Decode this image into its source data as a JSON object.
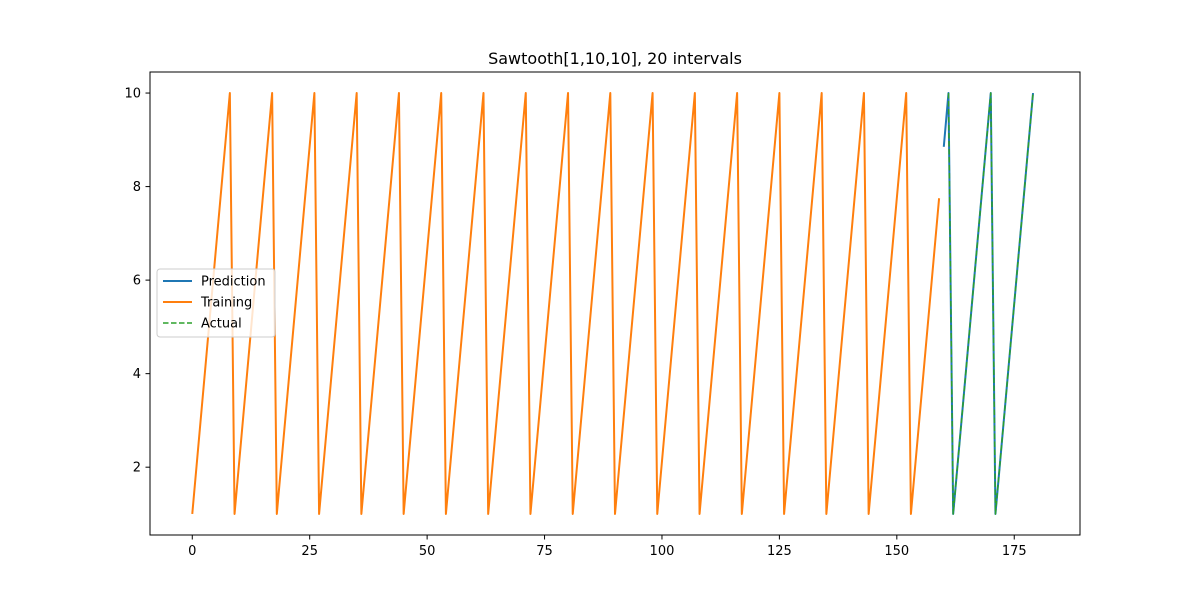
{
  "chart_data": {
    "type": "line",
    "title": "Sawtooth[1,10,10], 20 intervals",
    "xlabel": "",
    "ylabel": "",
    "xlim": [
      -9,
      189
    ],
    "ylim": [
      0.55,
      10.45
    ],
    "xticks": [
      0,
      25,
      50,
      75,
      100,
      125,
      150,
      175
    ],
    "yticks": [
      2,
      4,
      6,
      8,
      10
    ],
    "grid": false,
    "legend": "center-left",
    "series": [
      {
        "name": "Prediction",
        "color": "#1f77b4",
        "style": "solid",
        "x": [
          160,
          161,
          162,
          170,
          171,
          179
        ],
        "y": [
          8.85,
          10,
          1,
          10,
          1,
          10
        ]
      },
      {
        "name": "Training",
        "color": "#ff7f0e",
        "style": "solid",
        "x": [
          0,
          8,
          9,
          17,
          18,
          26,
          27,
          35,
          36,
          44,
          45,
          53,
          54,
          62,
          63,
          71,
          72,
          80,
          81,
          89,
          90,
          98,
          99,
          107,
          108,
          116,
          117,
          125,
          126,
          134,
          135,
          143,
          144,
          152,
          153,
          159
        ],
        "y": [
          1,
          10,
          1,
          10,
          1,
          10,
          1,
          10,
          1,
          10,
          1,
          10,
          1,
          10,
          1,
          10,
          1,
          10,
          1,
          10,
          1,
          10,
          1,
          10,
          1,
          10,
          1,
          10,
          1,
          10,
          1,
          10,
          1,
          10,
          1,
          7.75
        ]
      },
      {
        "name": "Actual",
        "color": "#2ca02c",
        "style": "dashed",
        "x": [
          161,
          162,
          170,
          171,
          179
        ],
        "y": [
          10,
          1,
          10,
          1,
          10
        ]
      }
    ]
  }
}
